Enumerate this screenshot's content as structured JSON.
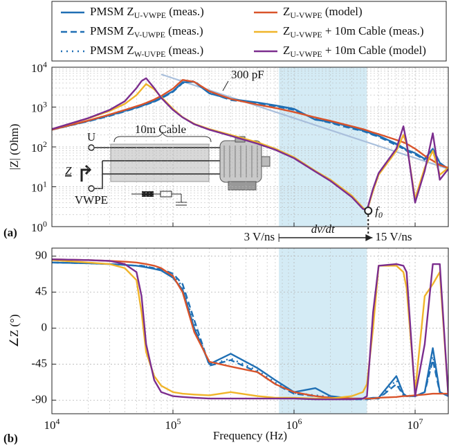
{
  "chart_data": [
    {
      "type": "line",
      "panel_label": "(a)",
      "ylabel": "|Z| (Ohm)",
      "xlog": true,
      "ylog": true,
      "grid": true,
      "xlim": [
        10000,
        18800000
      ],
      "ylim": [
        1,
        10000
      ],
      "xticks": [
        10000,
        100000,
        1000000,
        10000000
      ],
      "yticks": [
        {
          "value": 1,
          "label": "10^{0}"
        },
        {
          "value": 10,
          "label": "10^{1}"
        },
        {
          "value": 100,
          "label": "10^{2}"
        },
        {
          "value": 1000,
          "label": "10^{3}"
        },
        {
          "value": 10000,
          "label": "10^{4}"
        }
      ],
      "x": [
        10000,
        20000,
        30000,
        40000,
        50000,
        55000,
        60000,
        70000,
        80000,
        100000,
        120000,
        150000,
        200000,
        300000,
        500000,
        700000,
        1000000,
        1500000,
        2000000,
        3000000,
        3700000,
        4000000,
        4500000,
        5000000,
        7000000,
        8000000,
        8500000,
        10000000,
        12000000,
        14000000,
        16000000,
        18800000
      ],
      "series": [
        {
          "name": "PMSM Z_{U-VWPE} (meas.)",
          "color": "#1f6fb4",
          "dash": "solid",
          "values": [
            270,
            450,
            620,
            800,
            980,
            1080,
            1180,
            1400,
            1700,
            2500,
            4200,
            4300,
            2200,
            1600,
            1300,
            1100,
            900,
            480,
            430,
            310,
            260,
            240,
            210,
            190,
            120,
            95,
            85,
            70,
            50,
            90,
            40,
            28
          ]
        },
        {
          "name": "PMSM Z_{V-UWPE} (meas.)",
          "color": "#1f6fb4",
          "dash": "dashed",
          "values": [
            270,
            440,
            600,
            780,
            950,
            1050,
            1150,
            1350,
            1650,
            2400,
            4000,
            4500,
            2300,
            1500,
            1250,
            1050,
            850,
            500,
            400,
            290,
            250,
            230,
            200,
            180,
            110,
            90,
            80,
            65,
            48,
            85,
            38,
            27
          ]
        },
        {
          "name": "PMSM Z_{W-UVPE} (meas.)",
          "color": "#1f6fb4",
          "dash": "dotted",
          "values": [
            270,
            440,
            610,
            790,
            960,
            1060,
            1160,
            1380,
            1680,
            2450,
            4100,
            4400,
            2250,
            1550,
            1280,
            1080,
            870,
            490,
            410,
            300,
            255,
            235,
            205,
            185,
            115,
            92,
            82,
            68,
            50,
            88,
            39,
            28
          ]
        },
        {
          "name": "Z_{U-VWPE} (model)",
          "color": "#d9532a",
          "dash": "solid",
          "values": [
            270,
            460,
            650,
            850,
            1050,
            1150,
            1270,
            1550,
            1900,
            2900,
            4800,
            4300,
            2500,
            1600,
            1150,
            950,
            750,
            550,
            450,
            330,
            280,
            260,
            230,
            210,
            150,
            130,
            120,
            90,
            60,
            45,
            35,
            30
          ]
        },
        {
          "name": "Z_{U-VWPE} + 10m Cable (meas.)",
          "color": "#f0b429",
          "dash": "solid",
          "values": [
            280,
            520,
            800,
            1200,
            2000,
            2800,
            3800,
            2800,
            1800,
            900,
            560,
            380,
            280,
            200,
            130,
            90,
            55,
            25,
            15,
            6,
            3,
            2.5,
            8,
            20,
            80,
            200,
            120,
            5,
            30,
            80,
            20,
            30
          ]
        },
        {
          "name": "Z_{U-VWPE} + 10m Cable (model)",
          "color": "#7b2d8e",
          "dash": "solid",
          "values": [
            280,
            530,
            850,
            1400,
            3000,
            4500,
            5300,
            3000,
            1700,
            850,
            550,
            370,
            270,
            190,
            120,
            85,
            52,
            24,
            14,
            5.5,
            2.8,
            2.6,
            9,
            22,
            90,
            330,
            130,
            4,
            25,
            220,
            15,
            28
          ]
        }
      ],
      "band": [
        750000,
        4000000
      ],
      "reference_line": {
        "label": "300 pF",
        "color": "#a9bfdc",
        "x": [
          80000,
          18800000
        ],
        "values": [
          6630,
          28
        ]
      },
      "marker": {
        "label": "f_{0}",
        "x": 4100000,
        "value": 2.5
      },
      "inset": {
        "cable_label": "10m Cable",
        "terminal_top": "U",
        "terminal_bottom": "VWPE",
        "impedance": "Z"
      }
    },
    {
      "type": "line",
      "panel_label": "(b)",
      "xlabel": "Frequency (Hz)",
      "ylabel": "∠Z (°)",
      "xlog": true,
      "ylog": false,
      "grid": true,
      "xlim": [
        10000,
        18800000
      ],
      "ylim": [
        -107,
        100
      ],
      "xticks": [
        {
          "value": 10000,
          "label": "10^{4}"
        },
        {
          "value": 100000,
          "label": "10^{5}"
        },
        {
          "value": 1000000,
          "label": "10^{6}"
        },
        {
          "value": 10000000,
          "label": "10^{7}"
        }
      ],
      "yticks": [
        -90,
        -45,
        0,
        45,
        90
      ],
      "x": [
        10000,
        20000,
        30000,
        40000,
        50000,
        55000,
        60000,
        70000,
        80000,
        100000,
        120000,
        150000,
        200000,
        300000,
        500000,
        700000,
        1000000,
        1500000,
        2000000,
        3000000,
        3700000,
        4000000,
        4500000,
        5000000,
        7000000,
        8000000,
        8500000,
        10000000,
        12000000,
        14000000,
        16000000,
        18800000
      ],
      "series": [
        {
          "color": "#1f6fb4",
          "dash": "solid",
          "values": [
            82,
            81,
            80,
            79,
            78,
            77,
            76,
            74,
            72,
            63,
            48,
            0,
            -45,
            -32,
            -50,
            -65,
            -80,
            -75,
            -85,
            -88,
            -88,
            -88,
            -87,
            -87,
            -60,
            -82,
            -85,
            -85,
            -80,
            -25,
            -80,
            -85
          ]
        },
        {
          "color": "#1f6fb4",
          "dash": "dashed",
          "values": [
            82,
            81,
            80,
            79,
            78,
            78,
            77,
            75,
            74,
            68,
            55,
            10,
            -47,
            -40,
            -55,
            -70,
            -82,
            -85,
            -87,
            -89,
            -89,
            -89,
            -88,
            -88,
            -70,
            -84,
            -85,
            -85,
            -80,
            -40,
            -80,
            -85
          ]
        },
        {
          "color": "#1f6fb4",
          "dash": "dotted",
          "values": [
            82,
            81,
            80,
            79,
            78,
            78,
            77,
            75,
            73,
            66,
            52,
            5,
            -46,
            -38,
            -53,
            -68,
            -81,
            -84,
            -86,
            -89,
            -89,
            -89,
            -88,
            -88,
            -65,
            -83,
            -85,
            -85,
            -80,
            -35,
            -80,
            -85
          ]
        },
        {
          "color": "#d9532a",
          "dash": "solid",
          "values": [
            86,
            85,
            84,
            83,
            82,
            81,
            80,
            78,
            75,
            65,
            45,
            -5,
            -42,
            -48,
            -55,
            -70,
            -80,
            -85,
            -87,
            -88,
            -88,
            -88,
            -88,
            -87,
            -86,
            -85,
            -85,
            -84,
            -83,
            -82,
            -82,
            -82
          ]
        },
        {
          "color": "#f0b429",
          "dash": "solid",
          "values": [
            85,
            82,
            80,
            75,
            60,
            20,
            -30,
            -60,
            -72,
            -80,
            -82,
            -83,
            -84,
            -80,
            -85,
            -87,
            -87,
            -88,
            -88,
            -85,
            -80,
            -70,
            0,
            78,
            78,
            70,
            50,
            -80,
            40,
            55,
            70,
            -85
          ]
        },
        {
          "color": "#7b2d8e",
          "dash": "solid",
          "values": [
            86,
            85,
            84,
            80,
            70,
            40,
            -20,
            -65,
            -80,
            -85,
            -86,
            -87,
            -88,
            -88,
            -88,
            -88,
            -88,
            -89,
            -89,
            -89,
            -88,
            -85,
            20,
            78,
            80,
            78,
            70,
            -85,
            -20,
            80,
            80,
            -85
          ]
        }
      ],
      "slew_rate": {
        "start_label": "3 V/ns",
        "middle_label": "dv/dt",
        "end_label": "15 V/ns"
      }
    }
  ]
}
